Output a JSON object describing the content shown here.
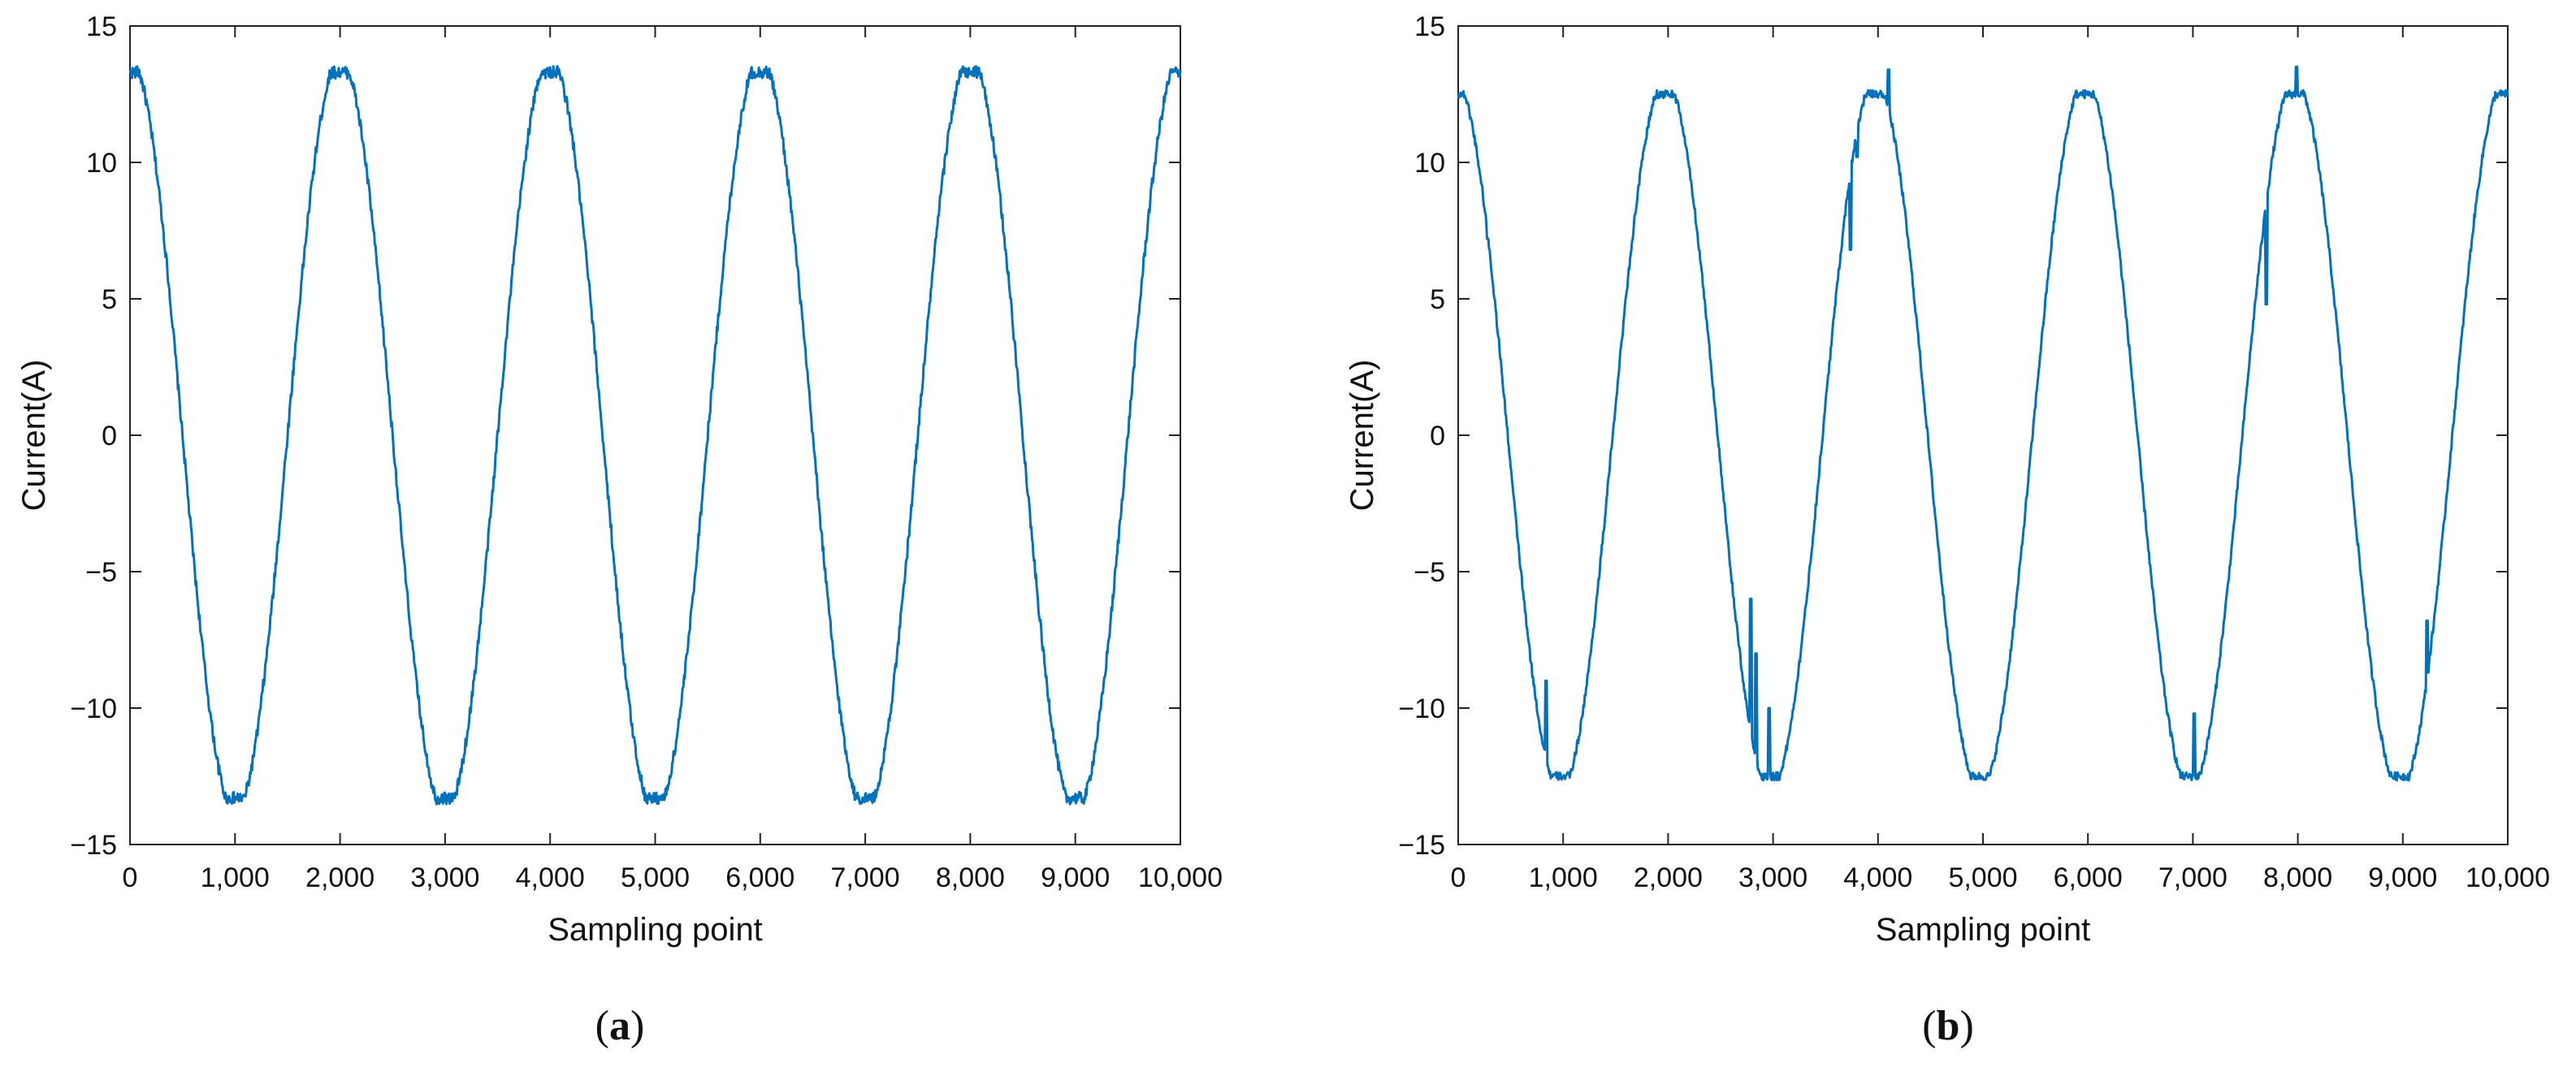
{
  "figure": {
    "panels": [
      {
        "caption_open": "(",
        "caption_letter": "a",
        "caption_close": ")"
      },
      {
        "caption_open": "(",
        "caption_letter": "b",
        "caption_close": ")"
      }
    ]
  },
  "chart_data": [
    {
      "type": "line",
      "title": "",
      "xlabel": "Sampling point",
      "ylabel": "Current(A)",
      "xlim": [
        0,
        10000
      ],
      "ylim": [
        -15,
        15
      ],
      "x_ticks": [
        0,
        1000,
        2000,
        3000,
        4000,
        5000,
        6000,
        7000,
        8000,
        9000,
        10000
      ],
      "x_tick_labels": [
        "0",
        "1,000",
        "2,000",
        "3,000",
        "4,000",
        "5,000",
        "6,000",
        "7,000",
        "8,000",
        "9,000",
        "10,000"
      ],
      "y_ticks": [
        -15,
        -10,
        -5,
        0,
        5,
        10,
        15
      ],
      "y_tick_labels": [
        "−15",
        "−10",
        "−5",
        "0",
        "5",
        "10",
        "15"
      ],
      "grid": false,
      "color": "#0072bd",
      "series": [
        {
          "name": "current",
          "period": 2000,
          "amplitude": 13.3,
          "phase_deg": 90,
          "points": [
            [
              0,
              12.9
            ],
            [
              100,
              12.8
            ],
            [
              500,
              0
            ],
            [
              1000,
              -13.3
            ],
            [
              1500,
              0
            ],
            [
              2000,
              13.3
            ],
            [
              2500,
              0
            ],
            [
              3000,
              -13.3
            ],
            [
              3500,
              0
            ],
            [
              4000,
              13.3
            ],
            [
              4500,
              0
            ],
            [
              5000,
              -13.3
            ],
            [
              5500,
              0
            ],
            [
              6000,
              13.3
            ],
            [
              6500,
              0
            ],
            [
              7000,
              -13.3
            ],
            [
              7500,
              0
            ],
            [
              8000,
              13.3
            ],
            [
              8500,
              0
            ],
            [
              9000,
              -13.3
            ],
            [
              9500,
              0
            ],
            [
              10000,
              13.2
            ]
          ]
        }
      ]
    },
    {
      "type": "line",
      "title": "",
      "xlabel": "Sampling point",
      "ylabel": "Current(A)",
      "xlim": [
        0,
        10000
      ],
      "ylim": [
        -15,
        15
      ],
      "x_ticks": [
        0,
        1000,
        2000,
        3000,
        4000,
        5000,
        6000,
        7000,
        8000,
        9000,
        10000
      ],
      "x_tick_labels": [
        "0",
        "1,000",
        "2,000",
        "3,000",
        "4,000",
        "5,000",
        "6,000",
        "7,000",
        "8,000",
        "9,000",
        "10,000"
      ],
      "y_ticks": [
        -15,
        -10,
        -5,
        0,
        5,
        10,
        15
      ],
      "y_tick_labels": [
        "−15",
        "−10",
        "−5",
        "0",
        "5",
        "10",
        "15"
      ],
      "grid": false,
      "color": "#0072bd",
      "series": [
        {
          "name": "current",
          "period": 2000,
          "amplitude": 12.5,
          "phase_deg": 95,
          "points": [
            [
              0,
              12.0
            ],
            [
              500,
              0
            ],
            [
              900,
              -10.5
            ],
            [
              1000,
              -12.5
            ],
            [
              1500,
              0
            ],
            [
              2050,
              12.5
            ],
            [
              2500,
              0
            ],
            [
              2800,
              -6.5
            ],
            [
              3000,
              -12.5
            ],
            [
              3500,
              0
            ],
            [
              3700,
              7.0
            ],
            [
              4100,
              13.4
            ],
            [
              4500,
              0
            ],
            [
              5000,
              -12.4
            ],
            [
              5500,
              0
            ],
            [
              6000,
              12.4
            ],
            [
              6500,
              0
            ],
            [
              7000,
              -10.5
            ],
            [
              7050,
              -12.6
            ],
            [
              7500,
              0
            ],
            [
              7700,
              5.0
            ],
            [
              8000,
              13.5
            ],
            [
              8500,
              0
            ],
            [
              9000,
              -12.4
            ],
            [
              9300,
              -7.0
            ],
            [
              9500,
              0
            ],
            [
              10000,
              12.0
            ]
          ],
          "spikes": [
            [
              280,
              7.2
            ],
            [
              840,
              -9.0
            ],
            [
              2790,
              -6.0
            ],
            [
              2840,
              -8.0
            ],
            [
              2960,
              -10.0
            ],
            [
              3740,
              6.8
            ],
            [
              3800,
              10.2
            ],
            [
              4100,
              13.4
            ],
            [
              7010,
              -10.2
            ],
            [
              7700,
              4.8
            ],
            [
              7990,
              13.5
            ],
            [
              9230,
              -6.8
            ]
          ]
        }
      ]
    }
  ]
}
